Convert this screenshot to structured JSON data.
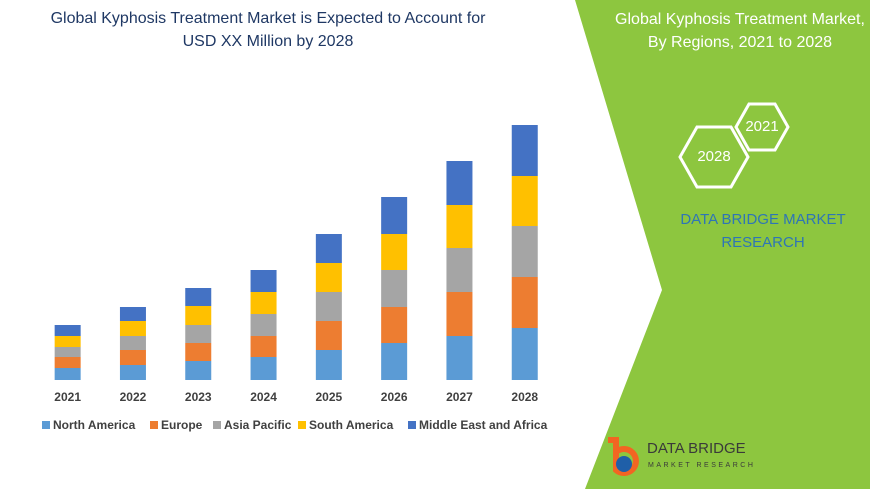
{
  "chart_data": {
    "type": "stacked-bar",
    "title": [
      "Global Kyphosis Treatment Market is Expected to Account for",
      "USD XX Million by 2028"
    ],
    "categories": [
      "2021",
      "2022",
      "2023",
      "2024",
      "2025",
      "2026",
      "2027",
      "2028"
    ],
    "series": [
      {
        "name": "North America",
        "color": "#5b9bd5",
        "values": [
          12,
          15,
          19,
          23,
          30,
          37,
          44,
          52
        ]
      },
      {
        "name": "Europe",
        "color": "#ed7d31",
        "values": [
          11,
          15,
          18,
          21,
          29,
          36,
          44,
          51
        ]
      },
      {
        "name": "Asia Pacific",
        "color": "#a5a5a5",
        "values": [
          10,
          14,
          18,
          22,
          29,
          37,
          44,
          51
        ]
      },
      {
        "name": "South America",
        "color": "#ffc000",
        "values": [
          11,
          15,
          19,
          22,
          29,
          36,
          43,
          50
        ]
      },
      {
        "name": "Middle East and Africa",
        "color": "#4472c4",
        "values": [
          11,
          14,
          18,
          22,
          29,
          37,
          44,
          51
        ]
      }
    ],
    "legend": "bottom"
  },
  "sidebar": {
    "title": [
      "Global Kyphosis Treatment Market,",
      "By Regions, 2021 to 2028"
    ],
    "hexagons": [
      "2021",
      "2028"
    ],
    "brand": [
      "DATA BRIDGE MARKET",
      "RESEARCH"
    ],
    "logo": {
      "name": "DATA BRIDGE",
      "tagline": "MARKET RESEARCH"
    }
  }
}
